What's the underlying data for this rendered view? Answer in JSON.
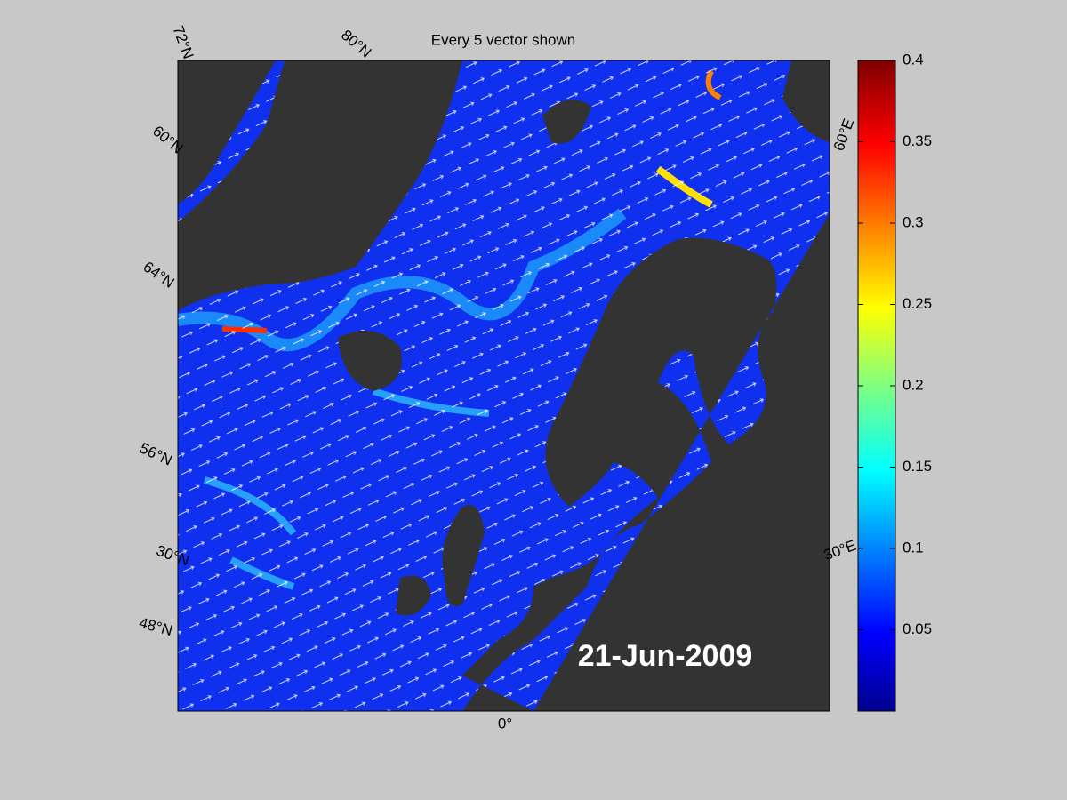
{
  "map": {
    "title": "Every 5 vector shown",
    "date": "21-Jun-2009",
    "graticule_labels": [
      "72°N",
      "80°N",
      "60°N",
      "64°N",
      "56°N",
      "30°N",
      "48°N",
      "0°",
      "30°E",
      "60°E"
    ],
    "colorbar": {
      "ylim": [
        0,
        0.4
      ],
      "yticks": [
        0.05,
        0.1,
        0.15,
        0.2,
        0.25,
        0.3,
        0.35,
        0.4
      ]
    }
  }
}
